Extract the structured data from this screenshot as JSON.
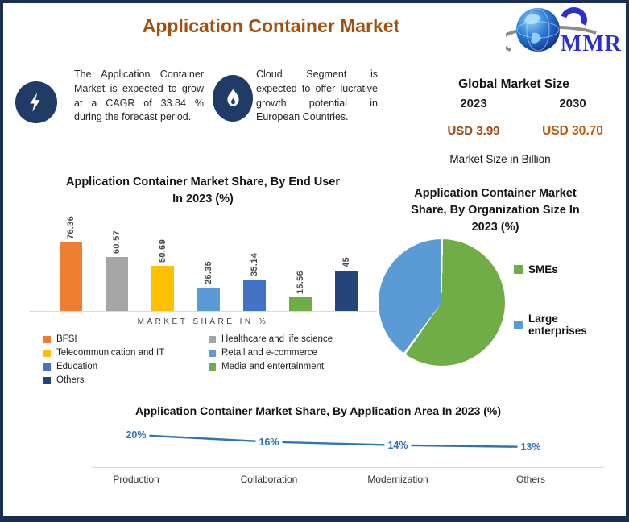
{
  "header": {
    "title": "Application Container Market",
    "logo_text": "MMR"
  },
  "callouts": [
    {
      "icon": "lightning-bolt-icon",
      "text": "The Application Container Market is expected to grow at a CAGR of 33.84 % during the forecast period."
    },
    {
      "icon": "flame-icon",
      "text": "Cloud Segment is expected to offer lucrative growth potential in European Countries."
    }
  ],
  "market_size": {
    "title": "Global Market Size",
    "year_left": "2023",
    "year_right": "2030",
    "value_left": "USD 3.99",
    "value_right": "USD 30.70",
    "note": "Market Size in Billion"
  },
  "chart_data": [
    {
      "type": "bar",
      "title": "Application Container Market Share, By End User In 2023 (%)",
      "title_lines": [
        "Application Container Market Share, By End User",
        "In 2023 (%)"
      ],
      "categories": [
        "BFSI",
        "Healthcare and life science",
        "Telecommunication and IT",
        "Retail and e-commerce",
        "Education",
        "Media and entertainment",
        "Others"
      ],
      "values": [
        76.36,
        60.57,
        50.69,
        26.35,
        35.14,
        15.56,
        45
      ],
      "colors": [
        "#ED7D31",
        "#A5A5A5",
        "#FFC000",
        "#5B9BD5",
        "#4472C4",
        "#70AD47",
        "#264478"
      ],
      "xlabel": "MARKET SHARE IN %",
      "ylim": [
        0,
        80
      ],
      "grid": false,
      "legend_position": "bottom"
    },
    {
      "type": "pie",
      "title": "Application Container Market Share, By Organization Size In 2023 (%)",
      "title_lines": [
        "Application Container Market",
        "Share, By Organization Size In",
        "2023 (%)"
      ],
      "categories": [
        "SMEs",
        "Large enterprises"
      ],
      "values": [
        60,
        40
      ],
      "colors": [
        "#70AD47",
        "#5B9BD5"
      ],
      "legend_position": "right"
    },
    {
      "type": "line",
      "title": "Application Container Market Share, By Application Area In 2023 (%)",
      "categories": [
        "Production",
        "Collaboration",
        "Modernization",
        "Others"
      ],
      "values": [
        20,
        16,
        14,
        13
      ],
      "labels": [
        "20%",
        "16%",
        "14%",
        "13%"
      ],
      "color": "#2E75B6",
      "ylim": [
        0,
        25
      ],
      "grid": false
    }
  ]
}
